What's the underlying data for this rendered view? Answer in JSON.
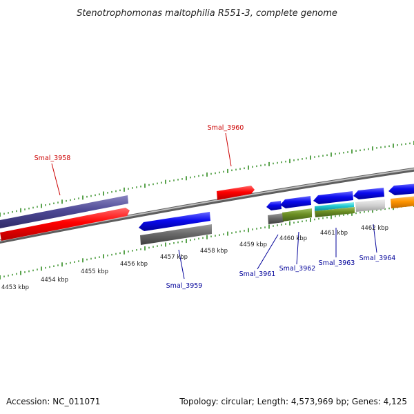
{
  "title": "Stenotrophomonas maltophilia R551-3, complete genome",
  "footer": {
    "accession": "Accession: NC_011071",
    "summary": "Topology: circular; Length: 4,573,969 bp; Genes: 4,125"
  },
  "colors": {
    "forward_label": "#cc0000",
    "reverse_label": "#000099",
    "backbone": "#7f7f7f",
    "tick": "#2e8b1e"
  },
  "scale_labels": [
    "4453 kbp",
    "4454 kbp",
    "4455 kbp",
    "4456 kbp",
    "4457 kbp",
    "4458 kbp",
    "4459 kbp",
    "4460 kbp",
    "4461 kbp",
    "4462 kbp"
  ],
  "gene_labels": {
    "forward": [
      "Smal_3958",
      "Smal_3960"
    ],
    "reverse": [
      "Smal_3959",
      "Smal_3961",
      "Smal_3962",
      "Smal_3963",
      "Smal_3964"
    ]
  }
}
